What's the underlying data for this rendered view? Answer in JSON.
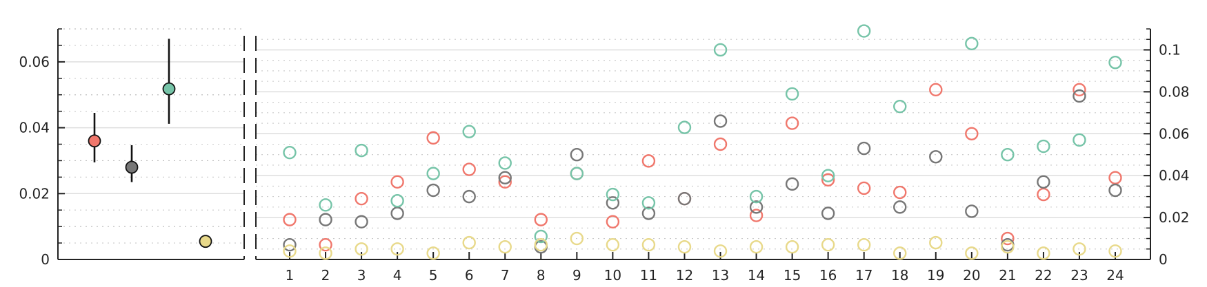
{
  "chart_data": [
    {
      "type": "scatter",
      "panel": "left",
      "ylim": [
        0,
        0.07
      ],
      "yticks": [
        0,
        0.02,
        0.04,
        0.06
      ],
      "ytick_labels": [
        "0",
        "0.02",
        "0.04",
        "0.06"
      ],
      "points": [
        {
          "value": 0.036,
          "err_low": 0.0295,
          "err_high": 0.0445,
          "color": "#f0776c"
        },
        {
          "value": 0.028,
          "err_low": 0.0235,
          "err_high": 0.0347,
          "color": "#777777"
        },
        {
          "value": 0.0518,
          "err_low": 0.0412,
          "err_high": 0.067,
          "color": "#76c4a8"
        },
        {
          "value": 0.0055,
          "err_low": 0.0055,
          "err_high": 0.0055,
          "color": "#e8d98a"
        }
      ]
    },
    {
      "type": "scatter",
      "panel": "right",
      "categories": [
        "1",
        "2",
        "3",
        "4",
        "5",
        "6",
        "7",
        "8",
        "9",
        "10",
        "11",
        "12",
        "13",
        "14",
        "15",
        "16",
        "17",
        "18",
        "19",
        "20",
        "21",
        "22",
        "23",
        "24"
      ],
      "ylim": [
        0,
        0.11
      ],
      "yticks": [
        0,
        0.02,
        0.04,
        0.06,
        0.08,
        0.1
      ],
      "ytick_labels": [
        "0",
        "0.02",
        "0.04",
        "0.06",
        "0.08",
        "0.1"
      ],
      "series": [
        {
          "color": "#f0776c",
          "values": [
            0.019,
            0.007,
            0.029,
            0.037,
            0.058,
            0.043,
            0.037,
            0.019,
            0.041,
            0.018,
            0.047,
            0.029,
            0.055,
            0.021,
            0.065,
            0.038,
            0.034,
            0.032,
            0.081,
            0.06,
            0.01,
            0.031,
            0.081,
            0.039
          ]
        },
        {
          "color": "#777777",
          "values": [
            0.007,
            0.019,
            0.018,
            0.022,
            0.033,
            0.03,
            0.039,
            0.006,
            0.05,
            0.027,
            0.022,
            0.029,
            0.066,
            0.025,
            0.036,
            0.022,
            0.053,
            0.025,
            0.049,
            0.023,
            0.007,
            0.037,
            0.078,
            0.033
          ]
        },
        {
          "color": "#76c4a8",
          "values": [
            0.051,
            0.026,
            0.052,
            0.028,
            0.041,
            0.061,
            0.046,
            0.011,
            0.041,
            0.031,
            0.027,
            0.063,
            0.1,
            0.03,
            0.079,
            0.04,
            0.109,
            0.073,
            null,
            0.103,
            0.05,
            0.054,
            0.057,
            0.094
          ]
        },
        {
          "color": "#e8d98a",
          "values": [
            0.004,
            0.003,
            0.005,
            0.005,
            0.003,
            0.008,
            0.006,
            0.007,
            0.01,
            0.007,
            0.007,
            0.006,
            0.004,
            0.006,
            0.006,
            0.007,
            0.007,
            0.003,
            0.008,
            0.003,
            0.006,
            0.003,
            0.005,
            0.004
          ]
        }
      ]
    }
  ]
}
